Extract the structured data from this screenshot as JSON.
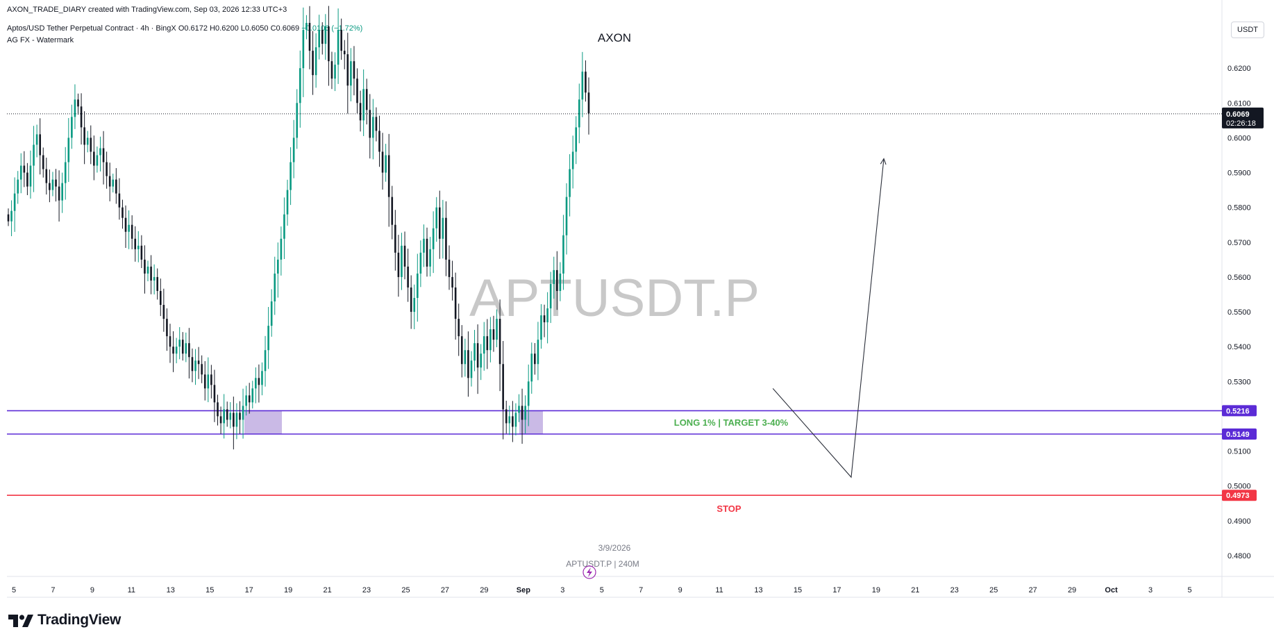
{
  "header": {
    "publish_line": "AXON_TRADE_DIARY created with TradingView.com, Sep 03, 2026 12:33 UTC+3",
    "symbol_line": "Aptos/USD Tether Perpetual Contract · 4h · BingX",
    "ohlc": {
      "open": "O0.6172",
      "high": "H0.6200",
      "low": "L0.6050",
      "close": "C0.6069",
      "change": "−0.0106 (−1.72%)"
    },
    "indicator_line": "AG FX - Watermark"
  },
  "currency_button": "USDT",
  "brand": {
    "logo_text": "TradingView"
  },
  "colors": {
    "bull": "#089981",
    "bear": "#131722",
    "level_line": "#5b2bd6",
    "stop_line": "#f23645",
    "long_text": "#4caf50",
    "stop_text": "#f23645",
    "zone_fill": "#b39ddb",
    "price_tag": "#131722"
  },
  "chart_data": {
    "type": "candlestick",
    "symbol": "APTUSDT.P",
    "timeframe": "4h",
    "ylim": [
      0.474,
      0.634
    ],
    "y_ticks": [
      "0.4800",
      "0.4900",
      "0.5000",
      "0.5100",
      "0.5300",
      "0.5400",
      "0.5500",
      "0.5600",
      "0.5700",
      "0.5800",
      "0.5900",
      "0.6000",
      "0.6100",
      "0.6200"
    ],
    "x_ticks": [
      "5",
      "7",
      "9",
      "11",
      "13",
      "15",
      "17",
      "19",
      "21",
      "23",
      "25",
      "27",
      "29",
      "Sep",
      "3",
      "5",
      "7",
      "9",
      "11",
      "13",
      "15",
      "17",
      "19",
      "21",
      "23",
      "25",
      "27",
      "29",
      "Oct",
      "3",
      "5"
    ],
    "watermark": {
      "main": "APTUSDT.P",
      "date": "3/9/2026",
      "sub": "APTUSDT.P | 240M",
      "top": "AXON"
    },
    "current_price": {
      "value": "0.6069",
      "countdown": "02:26:18"
    },
    "levels": [
      {
        "name": "entry-top",
        "value": 0.5216,
        "label": "0.5216"
      },
      {
        "name": "entry-bottom",
        "value": 0.5149,
        "label": "0.5149"
      },
      {
        "name": "stop",
        "value": 0.4973,
        "label": "0.4973"
      }
    ],
    "annotations": {
      "long": "LONG 1% | TARGET 3-40%",
      "stop": "STOP"
    },
    "path_projection": [
      [
        -60,
        0.528
      ],
      [
        0,
        0.5025
      ],
      [
        25,
        0.594
      ]
    ],
    "closes": [
      0.576,
      0.579,
      0.584,
      0.588,
      0.592,
      0.59,
      0.586,
      0.592,
      0.598,
      0.601,
      0.595,
      0.591,
      0.587,
      0.585,
      0.588,
      0.586,
      0.582,
      0.587,
      0.593,
      0.6,
      0.606,
      0.611,
      0.609,
      0.603,
      0.598,
      0.6,
      0.596,
      0.592,
      0.595,
      0.597,
      0.593,
      0.589,
      0.586,
      0.588,
      0.584,
      0.58,
      0.577,
      0.573,
      0.575,
      0.571,
      0.568,
      0.569,
      0.565,
      0.561,
      0.563,
      0.559,
      0.56,
      0.556,
      0.552,
      0.548,
      0.543,
      0.54,
      0.538,
      0.54,
      0.542,
      0.538,
      0.541,
      0.537,
      0.533,
      0.536,
      0.535,
      0.532,
      0.528,
      0.532,
      0.529,
      0.524,
      0.52,
      0.518,
      0.522,
      0.519,
      0.521,
      0.517,
      0.521,
      0.519,
      0.523,
      0.526,
      0.524,
      0.528,
      0.531,
      0.529,
      0.533,
      0.539,
      0.546,
      0.553,
      0.561,
      0.565,
      0.571,
      0.578,
      0.585,
      0.593,
      0.6,
      0.61,
      0.62,
      0.631,
      0.633,
      0.625,
      0.618,
      0.626,
      0.631,
      0.627,
      0.632,
      0.622,
      0.617,
      0.621,
      0.631,
      0.625,
      0.624,
      0.615,
      0.622,
      0.617,
      0.61,
      0.605,
      0.614,
      0.608,
      0.6,
      0.606,
      0.602,
      0.596,
      0.59,
      0.595,
      0.583,
      0.575,
      0.567,
      0.56,
      0.569,
      0.563,
      0.557,
      0.55,
      0.554,
      0.561,
      0.567,
      0.571,
      0.563,
      0.568,
      0.574,
      0.58,
      0.571,
      0.577,
      0.565,
      0.56,
      0.557,
      0.548,
      0.543,
      0.535,
      0.539,
      0.531,
      0.536,
      0.541,
      0.534,
      0.538,
      0.543,
      0.539,
      0.545,
      0.542,
      0.548,
      0.535,
      0.522,
      0.518,
      0.52,
      0.517,
      0.521,
      0.523,
      0.519,
      0.523,
      0.53,
      0.538,
      0.535,
      0.542,
      0.549,
      0.547,
      0.551,
      0.558,
      0.562,
      0.556,
      0.561,
      0.572,
      0.583,
      0.591,
      0.596,
      0.603,
      0.611,
      0.619,
      0.613,
      0.607
    ]
  }
}
